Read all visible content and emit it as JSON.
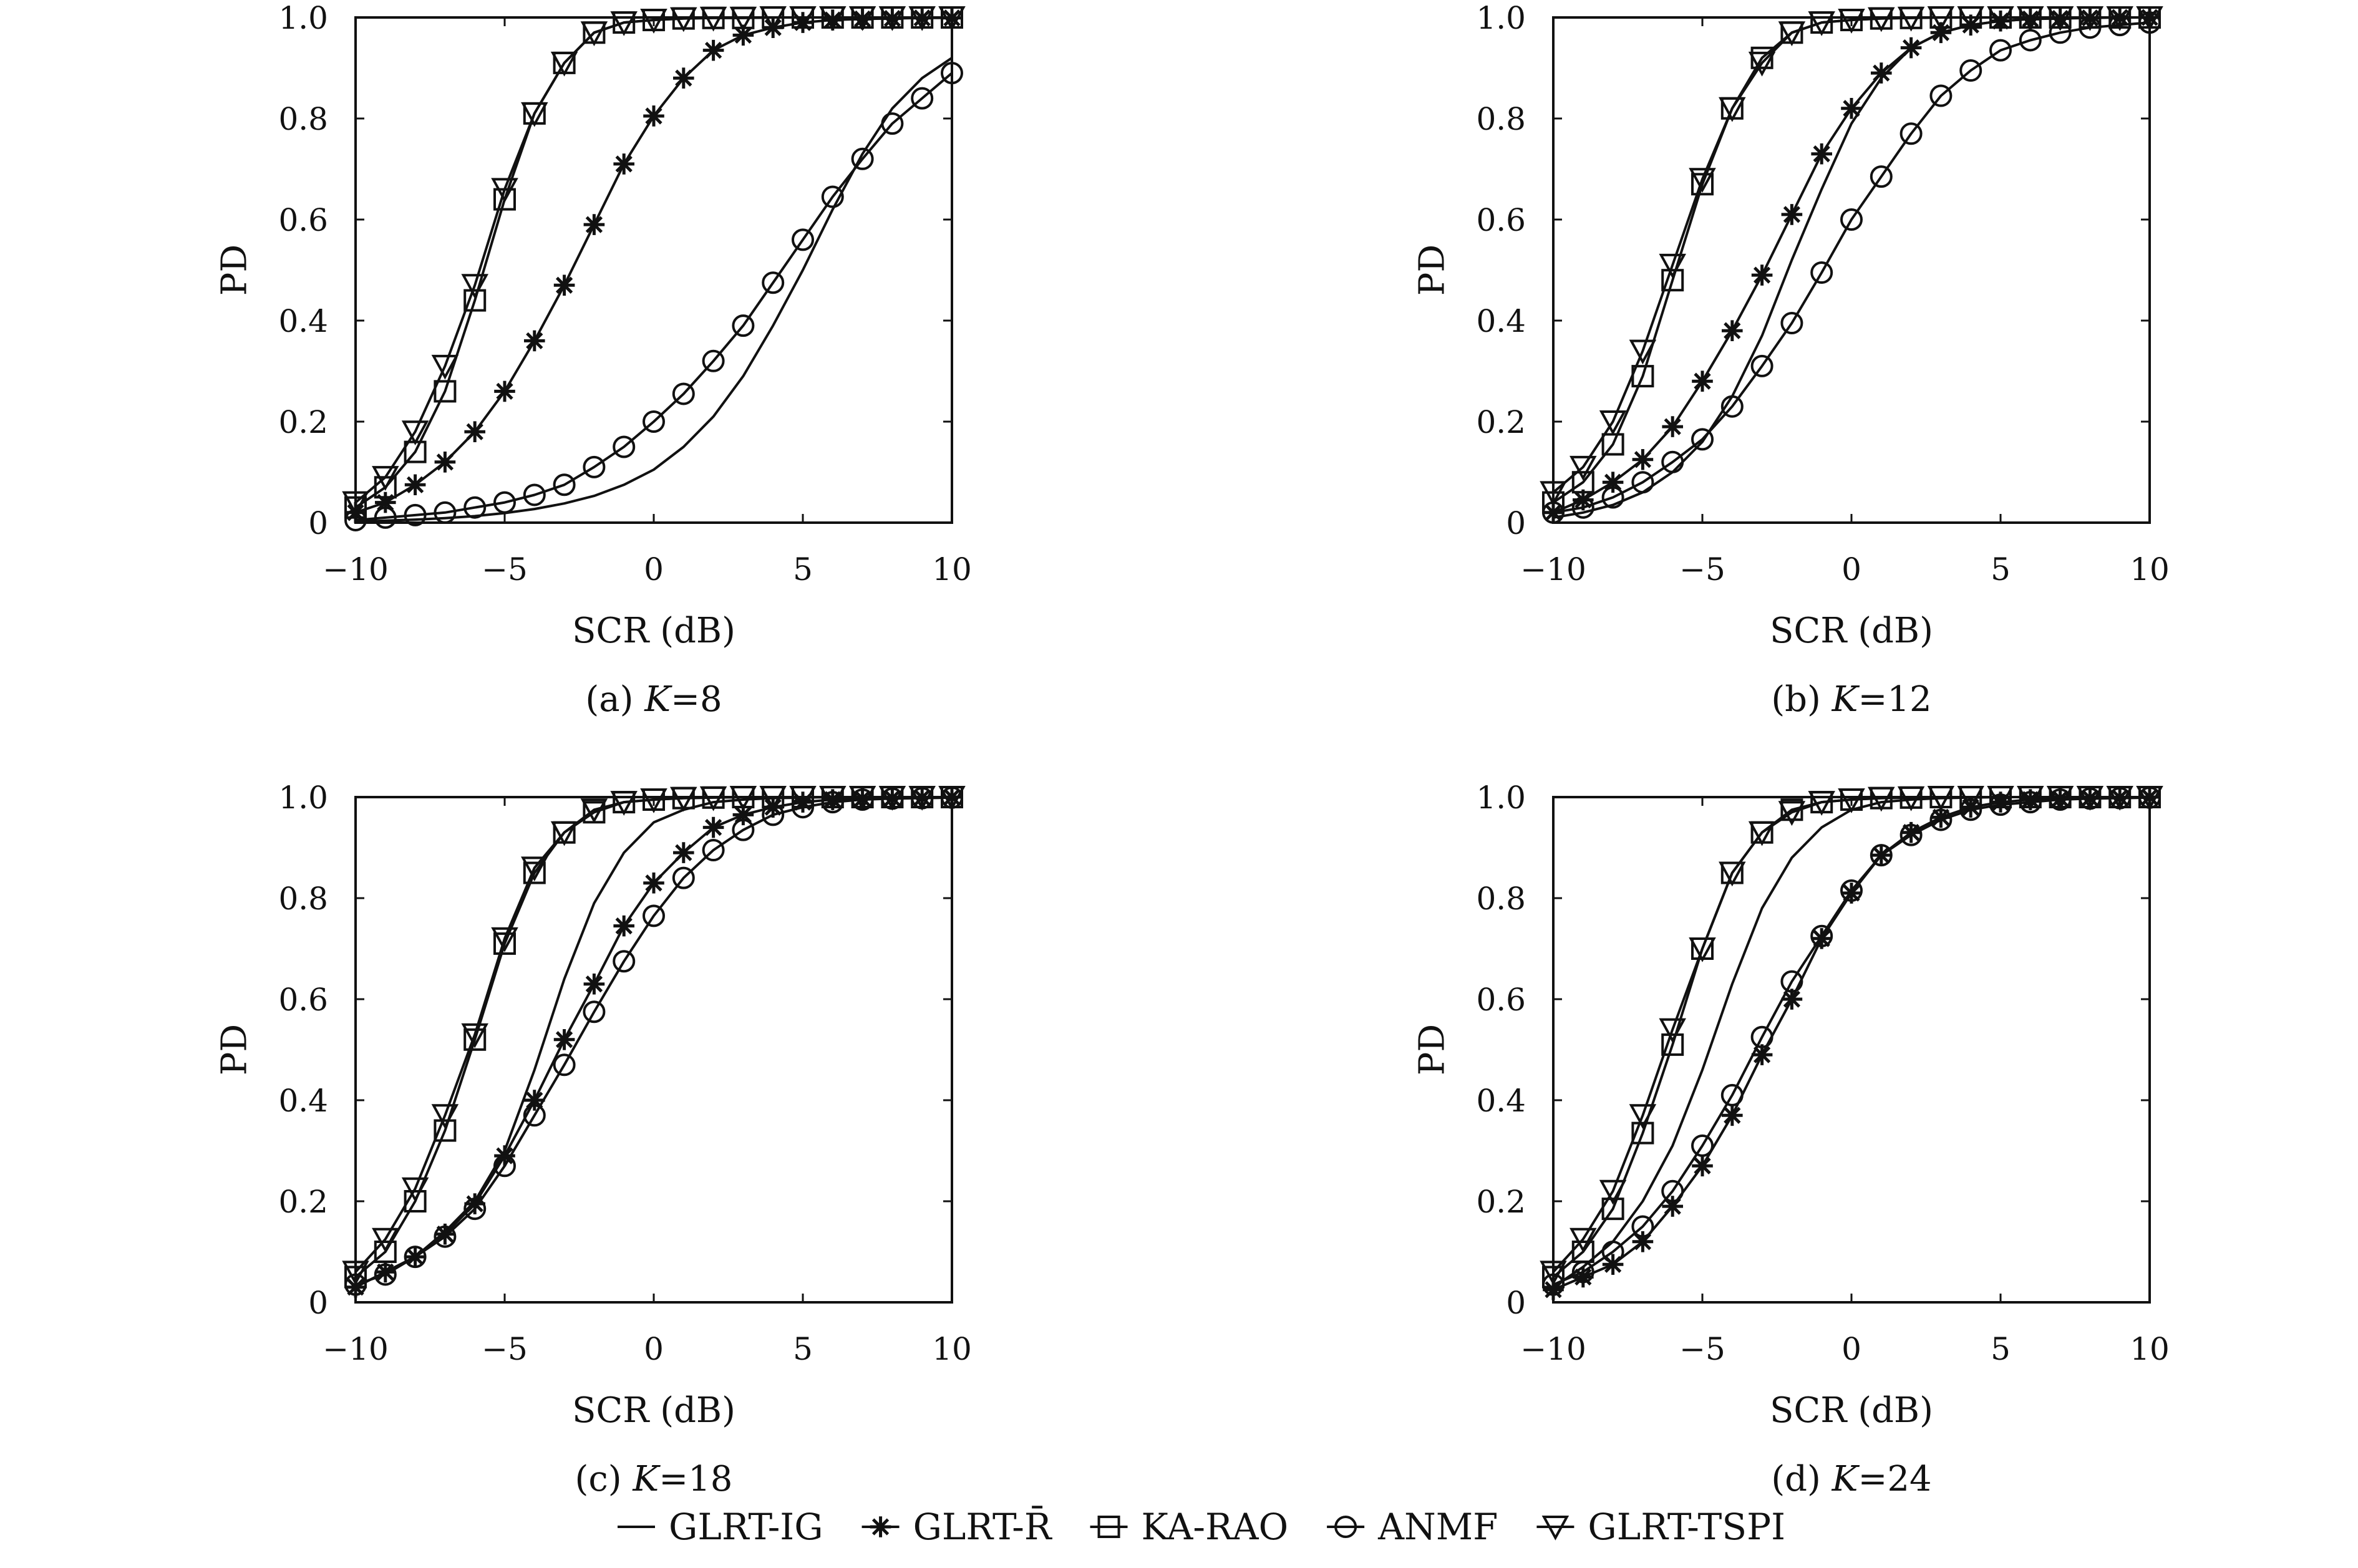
{
  "legend": {
    "entries": [
      {
        "key": "glrt_ig",
        "label": "GLRT-IG",
        "marker": "none"
      },
      {
        "key": "glrt_r",
        "label": "GLRT-R̄",
        "marker": "star"
      },
      {
        "key": "ka_rao",
        "label": "KA-RAO",
        "marker": "square"
      },
      {
        "key": "anmf",
        "label": "ANMF",
        "marker": "circle"
      },
      {
        "key": "glrt_tspi",
        "label": "GLRT-TSPI",
        "marker": "triangle-down"
      }
    ]
  },
  "chart_data": [
    {
      "type": "line",
      "caption": "(a) K=8",
      "xlabel": "SCR (dB)",
      "ylabel": "PD",
      "xlim": [
        -10,
        10
      ],
      "ylim": [
        0,
        1
      ],
      "xticks": [
        "−10",
        "−5",
        "0",
        "5",
        "10"
      ],
      "yticks": [
        "0",
        "0.2",
        "0.4",
        "0.6",
        "0.8",
        "1.0"
      ],
      "grid": false,
      "x": [
        -10,
        -9,
        -8,
        -7,
        -6,
        -5,
        -4,
        -3,
        -2,
        -1,
        0,
        1,
        2,
        3,
        4,
        5,
        6,
        7,
        8,
        9,
        10
      ],
      "series": [
        {
          "key": "glrt_ig",
          "values": [
            0.002,
            0.004,
            0.006,
            0.009,
            0.013,
            0.019,
            0.027,
            0.038,
            0.053,
            0.075,
            0.105,
            0.15,
            0.21,
            0.29,
            0.39,
            0.5,
            0.62,
            0.73,
            0.82,
            0.88,
            0.92
          ]
        },
        {
          "key": "glrt_r",
          "values": [
            0.02,
            0.04,
            0.075,
            0.12,
            0.18,
            0.26,
            0.36,
            0.47,
            0.59,
            0.71,
            0.805,
            0.88,
            0.935,
            0.965,
            0.98,
            0.99,
            0.995,
            0.997,
            0.998,
            0.999,
            0.999
          ]
        },
        {
          "key": "ka_rao",
          "values": [
            0.03,
            0.07,
            0.14,
            0.26,
            0.44,
            0.64,
            0.81,
            0.91,
            0.97,
            0.99,
            0.995,
            0.998,
            0.999,
            0.999,
            1.0,
            1.0,
            1.0,
            1.0,
            1.0,
            1.0,
            1.0
          ]
        },
        {
          "key": "anmf",
          "values": [
            0.005,
            0.01,
            0.015,
            0.02,
            0.03,
            0.04,
            0.055,
            0.075,
            0.11,
            0.15,
            0.2,
            0.255,
            0.32,
            0.39,
            0.475,
            0.56,
            0.645,
            0.72,
            0.79,
            0.84,
            0.89
          ]
        },
        {
          "key": "glrt_tspi",
          "values": [
            0.04,
            0.09,
            0.18,
            0.31,
            0.47,
            0.66,
            0.81,
            0.91,
            0.97,
            0.99,
            0.995,
            0.998,
            0.999,
            0.999,
            1.0,
            1.0,
            1.0,
            1.0,
            1.0,
            1.0,
            1.0
          ]
        }
      ]
    },
    {
      "type": "line",
      "caption": "(b) K=12",
      "xlabel": "SCR (dB)",
      "ylabel": "PD",
      "xlim": [
        -10,
        10
      ],
      "ylim": [
        0,
        1
      ],
      "xticks": [
        "−10",
        "−5",
        "0",
        "5",
        "10"
      ],
      "yticks": [
        "0",
        "0.2",
        "0.4",
        "0.6",
        "0.8",
        "1.0"
      ],
      "grid": false,
      "x": [
        -10,
        -9,
        -8,
        -7,
        -6,
        -5,
        -4,
        -3,
        -2,
        -1,
        0,
        1,
        2,
        3,
        4,
        5,
        6,
        7,
        8,
        9,
        10
      ],
      "series": [
        {
          "key": "glrt_ig",
          "values": [
            0.01,
            0.02,
            0.035,
            0.06,
            0.1,
            0.16,
            0.25,
            0.37,
            0.52,
            0.66,
            0.79,
            0.88,
            0.94,
            0.97,
            0.985,
            0.993,
            0.997,
            0.999,
            1.0,
            1.0,
            1.0
          ]
        },
        {
          "key": "glrt_r",
          "values": [
            0.02,
            0.045,
            0.08,
            0.125,
            0.19,
            0.28,
            0.38,
            0.49,
            0.61,
            0.73,
            0.82,
            0.89,
            0.94,
            0.97,
            0.985,
            0.993,
            0.997,
            0.998,
            0.999,
            1.0,
            1.0
          ]
        },
        {
          "key": "ka_rao",
          "values": [
            0.04,
            0.08,
            0.155,
            0.29,
            0.48,
            0.67,
            0.82,
            0.92,
            0.97,
            0.99,
            0.995,
            0.998,
            0.999,
            1.0,
            1.0,
            1.0,
            1.0,
            1.0,
            1.0,
            1.0,
            1.0
          ]
        },
        {
          "key": "anmf",
          "values": [
            0.02,
            0.03,
            0.05,
            0.08,
            0.12,
            0.165,
            0.23,
            0.31,
            0.395,
            0.495,
            0.6,
            0.685,
            0.77,
            0.845,
            0.895,
            0.935,
            0.955,
            0.97,
            0.98,
            0.985,
            0.99
          ]
        },
        {
          "key": "glrt_tspi",
          "values": [
            0.06,
            0.11,
            0.2,
            0.34,
            0.51,
            0.68,
            0.82,
            0.91,
            0.97,
            0.99,
            0.995,
            0.998,
            0.999,
            1.0,
            1.0,
            1.0,
            1.0,
            1.0,
            1.0,
            1.0,
            1.0
          ]
        }
      ]
    },
    {
      "type": "line",
      "caption": "(c) K=18",
      "xlabel": "SCR (dB)",
      "ylabel": "PD",
      "xlim": [
        -10,
        10
      ],
      "ylim": [
        0,
        1
      ],
      "xticks": [
        "−10",
        "−5",
        "0",
        "5",
        "10"
      ],
      "yticks": [
        "0",
        "0.2",
        "0.4",
        "0.6",
        "0.8",
        "1.0"
      ],
      "grid": false,
      "x": [
        -10,
        -9,
        -8,
        -7,
        -6,
        -5,
        -4,
        -3,
        -2,
        -1,
        0,
        1,
        2,
        3,
        4,
        5,
        6,
        7,
        8,
        9,
        10
      ],
      "series": [
        {
          "key": "glrt_ig",
          "values": [
            0.03,
            0.06,
            0.09,
            0.14,
            0.2,
            0.3,
            0.46,
            0.64,
            0.79,
            0.89,
            0.95,
            0.975,
            0.99,
            0.995,
            0.998,
            0.999,
            1.0,
            1.0,
            1.0,
            1.0,
            1.0
          ]
        },
        {
          "key": "glrt_r",
          "values": [
            0.03,
            0.06,
            0.09,
            0.135,
            0.195,
            0.29,
            0.4,
            0.52,
            0.63,
            0.745,
            0.83,
            0.89,
            0.94,
            0.965,
            0.98,
            0.99,
            0.995,
            0.997,
            0.998,
            0.999,
            1.0
          ]
        },
        {
          "key": "ka_rao",
          "values": [
            0.05,
            0.1,
            0.2,
            0.34,
            0.52,
            0.71,
            0.85,
            0.93,
            0.97,
            0.99,
            0.995,
            0.998,
            0.999,
            1.0,
            1.0,
            1.0,
            1.0,
            1.0,
            1.0,
            1.0,
            1.0
          ]
        },
        {
          "key": "anmf",
          "values": [
            0.035,
            0.055,
            0.09,
            0.13,
            0.185,
            0.27,
            0.37,
            0.47,
            0.575,
            0.675,
            0.765,
            0.84,
            0.895,
            0.935,
            0.965,
            0.98,
            0.99,
            0.995,
            0.997,
            0.998,
            0.999
          ]
        },
        {
          "key": "glrt_tspi",
          "values": [
            0.06,
            0.125,
            0.225,
            0.37,
            0.53,
            0.72,
            0.86,
            0.93,
            0.975,
            0.99,
            0.995,
            0.998,
            0.999,
            1.0,
            1.0,
            1.0,
            1.0,
            1.0,
            1.0,
            1.0,
            1.0
          ]
        }
      ]
    },
    {
      "type": "line",
      "caption": "(d) K=24",
      "xlabel": "SCR (dB)",
      "ylabel": "PD",
      "xlim": [
        -10,
        10
      ],
      "ylim": [
        0,
        1
      ],
      "xticks": [
        "−10",
        "−5",
        "0",
        "5",
        "10"
      ],
      "yticks": [
        "0",
        "0.2",
        "0.4",
        "0.6",
        "0.8",
        "1.0"
      ],
      "grid": false,
      "x": [
        -10,
        -9,
        -8,
        -7,
        -6,
        -5,
        -4,
        -3,
        -2,
        -1,
        0,
        1,
        2,
        3,
        4,
        5,
        6,
        7,
        8,
        9,
        10
      ],
      "series": [
        {
          "key": "glrt_ig",
          "values": [
            0.03,
            0.07,
            0.12,
            0.2,
            0.31,
            0.46,
            0.63,
            0.78,
            0.88,
            0.94,
            0.975,
            0.99,
            0.995,
            0.998,
            0.999,
            1.0,
            1.0,
            1.0,
            1.0,
            1.0,
            1.0
          ]
        },
        {
          "key": "glrt_r",
          "values": [
            0.025,
            0.05,
            0.075,
            0.12,
            0.19,
            0.27,
            0.37,
            0.49,
            0.6,
            0.72,
            0.81,
            0.885,
            0.93,
            0.96,
            0.98,
            0.99,
            0.995,
            0.997,
            0.998,
            0.999,
            1.0
          ]
        },
        {
          "key": "ka_rao",
          "values": [
            0.05,
            0.1,
            0.185,
            0.335,
            0.51,
            0.7,
            0.85,
            0.93,
            0.975,
            0.99,
            0.995,
            0.998,
            0.999,
            1.0,
            1.0,
            1.0,
            1.0,
            1.0,
            1.0,
            1.0,
            1.0
          ]
        },
        {
          "key": "anmf",
          "values": [
            0.035,
            0.06,
            0.1,
            0.15,
            0.22,
            0.31,
            0.41,
            0.525,
            0.635,
            0.725,
            0.815,
            0.885,
            0.925,
            0.955,
            0.975,
            0.985,
            0.99,
            0.995,
            0.997,
            0.998,
            0.999
          ]
        },
        {
          "key": "glrt_tspi",
          "values": [
            0.06,
            0.125,
            0.22,
            0.37,
            0.54,
            0.7,
            0.85,
            0.93,
            0.97,
            0.99,
            0.995,
            0.998,
            0.999,
            1.0,
            1.0,
            1.0,
            1.0,
            1.0,
            1.0,
            1.0,
            1.0
          ]
        }
      ]
    }
  ]
}
